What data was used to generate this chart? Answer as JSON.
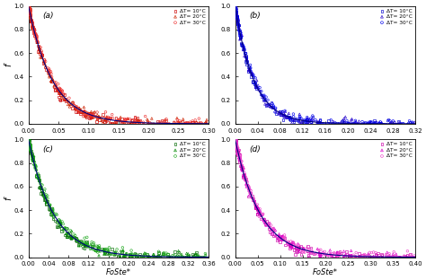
{
  "subplots": [
    {
      "label": "(a)",
      "xlim": [
        0,
        0.3
      ],
      "xticks": [
        0.0,
        0.05,
        0.1,
        0.15,
        0.2,
        0.25,
        0.3
      ],
      "colors": [
        "#cc0000",
        "#cc2200",
        "#ee3333"
      ],
      "k": 25,
      "n": 120
    },
    {
      "label": "(b)",
      "xlim": [
        0,
        0.32
      ],
      "xticks": [
        0.0,
        0.04,
        0.08,
        0.12,
        0.16,
        0.2,
        0.24,
        0.28,
        0.32
      ],
      "colors": [
        "#0000cc",
        "#2200cc",
        "#0000ee"
      ],
      "k": 30,
      "n": 100
    },
    {
      "label": "(c)",
      "xlim": [
        0,
        0.36
      ],
      "xticks": [
        0.0,
        0.04,
        0.08,
        0.12,
        0.16,
        0.2,
        0.24,
        0.28,
        0.32,
        0.36
      ],
      "colors": [
        "#006600",
        "#008800",
        "#22aa22"
      ],
      "k": 20,
      "n": 120
    },
    {
      "label": "(d)",
      "xlim": [
        0,
        0.4
      ],
      "xticks": [
        0.0,
        0.05,
        0.1,
        0.15,
        0.2,
        0.25,
        0.3,
        0.35,
        0.4
      ],
      "colors": [
        "#cc00aa",
        "#dd00cc",
        "#ee44cc"
      ],
      "k": 18,
      "n": 120
    }
  ],
  "legend_labels": [
    "ΔT= 10°C",
    "ΔT= 20°C",
    "ΔT= 30°C"
  ],
  "ylabel": "f",
  "xlabel": "FoSte*",
  "ylim": [
    0,
    1.0
  ],
  "yticks": [
    0.0,
    0.2,
    0.4,
    0.6,
    0.8,
    1.0
  ],
  "curve_color": "#000080",
  "bg_color": "#ffffff"
}
